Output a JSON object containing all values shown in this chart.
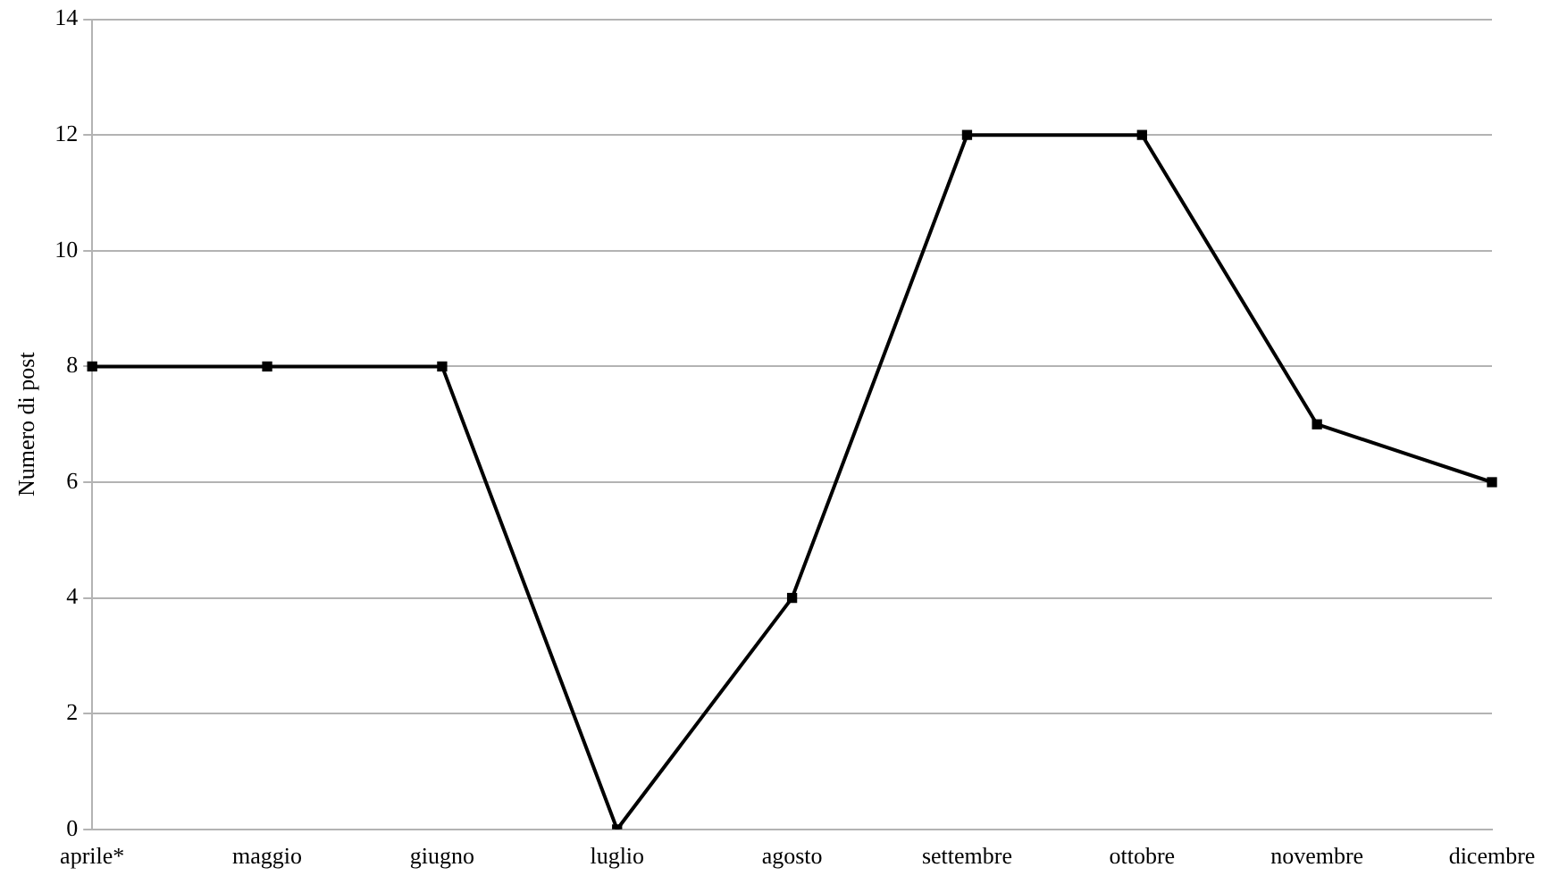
{
  "chart_data": {
    "type": "line",
    "ylabel": "Numero di post",
    "categories": [
      "aprile*",
      "maggio",
      "giugno",
      "luglio",
      "agosto",
      "settembre",
      "ottobre",
      "novembre",
      "dicembre"
    ],
    "series": [
      {
        "color": "#000000",
        "values": [
          8,
          8,
          8,
          0,
          4,
          12,
          12,
          7,
          6
        ]
      }
    ],
    "ylim": [
      0,
      14
    ],
    "yticks": [
      0,
      2,
      4,
      6,
      8,
      10,
      12,
      14
    ],
    "grid": "y",
    "legend": false,
    "marker": "square",
    "line_style": "solid"
  }
}
